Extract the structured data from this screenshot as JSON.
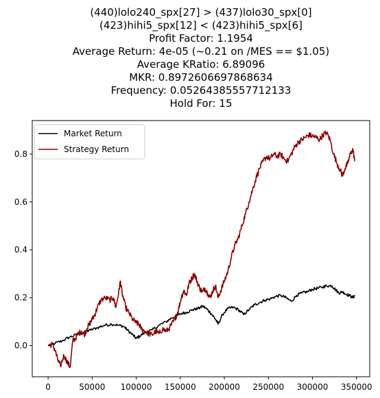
{
  "chart_data": {
    "type": "line",
    "title_lines": [
      "(440)lolo240_spx[27] > (437)lolo30_spx[0]",
      "(423)hihi5_spx[12] < (423)hihi5_spx[6]",
      "Profit Factor: 1.1954",
      "Average Return: 4e-05 (~0.21 on /MES == $1.05)",
      "Average KRatio: 6.89096",
      "MKR: 0.8972606697868634",
      "Frequency: 0.05264385557712133",
      "Hold For: 15"
    ],
    "xlabel": "",
    "ylabel": "",
    "xlim": [
      -18000,
      365000
    ],
    "ylim": [
      -0.13,
      0.94
    ],
    "xticks": [
      0,
      50000,
      100000,
      150000,
      200000,
      250000,
      300000,
      350000
    ],
    "yticks": [
      0.0,
      0.2,
      0.4,
      0.6,
      0.8
    ],
    "grid": false,
    "legend_position": "upper-left",
    "series": [
      {
        "name": "Market Return",
        "color": "#000000",
        "points": [
          [
            0,
            0.0
          ],
          [
            8000,
            0.01
          ],
          [
            16000,
            0.02
          ],
          [
            24000,
            0.035
          ],
          [
            32000,
            0.045
          ],
          [
            40000,
            0.055
          ],
          [
            48000,
            0.065
          ],
          [
            56000,
            0.075
          ],
          [
            64000,
            0.085
          ],
          [
            72000,
            0.09
          ],
          [
            80000,
            0.085
          ],
          [
            86000,
            0.08
          ],
          [
            90000,
            0.065
          ],
          [
            96000,
            0.045
          ],
          [
            100000,
            0.03
          ],
          [
            104000,
            0.04
          ],
          [
            110000,
            0.055
          ],
          [
            118000,
            0.065
          ],
          [
            126000,
            0.085
          ],
          [
            134000,
            0.1
          ],
          [
            140000,
            0.115
          ],
          [
            146000,
            0.125
          ],
          [
            152000,
            0.135
          ],
          [
            158000,
            0.14
          ],
          [
            164000,
            0.15
          ],
          [
            170000,
            0.155
          ],
          [
            176000,
            0.165
          ],
          [
            181000,
            0.15
          ],
          [
            186000,
            0.13
          ],
          [
            190000,
            0.11
          ],
          [
            193000,
            0.09
          ],
          [
            198000,
            0.13
          ],
          [
            204000,
            0.155
          ],
          [
            210000,
            0.16
          ],
          [
            216000,
            0.15
          ],
          [
            222000,
            0.13
          ],
          [
            228000,
            0.15
          ],
          [
            234000,
            0.17
          ],
          [
            240000,
            0.18
          ],
          [
            246000,
            0.19
          ],
          [
            252000,
            0.195
          ],
          [
            258000,
            0.205
          ],
          [
            264000,
            0.21
          ],
          [
            270000,
            0.2
          ],
          [
            276000,
            0.185
          ],
          [
            282000,
            0.21
          ],
          [
            288000,
            0.22
          ],
          [
            294000,
            0.225
          ],
          [
            300000,
            0.235
          ],
          [
            306000,
            0.24
          ],
          [
            312000,
            0.245
          ],
          [
            316000,
            0.25
          ],
          [
            322000,
            0.25
          ],
          [
            326000,
            0.235
          ],
          [
            330000,
            0.22
          ],
          [
            334000,
            0.225
          ],
          [
            338000,
            0.215
          ],
          [
            342000,
            0.21
          ],
          [
            346000,
            0.2
          ],
          [
            348000,
            0.21
          ]
        ]
      },
      {
        "name": "Strategy Return",
        "color": "#8b0000",
        "points": [
          [
            0,
            0.0
          ],
          [
            5000,
            0.005
          ],
          [
            8000,
            -0.02
          ],
          [
            11000,
            -0.06
          ],
          [
            14000,
            -0.085
          ],
          [
            18000,
            -0.04
          ],
          [
            22000,
            -0.07
          ],
          [
            25000,
            -0.09
          ],
          [
            28000,
            0.02
          ],
          [
            31000,
            0.03
          ],
          [
            34000,
            0.05
          ],
          [
            38000,
            0.06
          ],
          [
            41000,
            0.045
          ],
          [
            44000,
            0.07
          ],
          [
            47000,
            0.09
          ],
          [
            50000,
            0.11
          ],
          [
            53000,
            0.13
          ],
          [
            56000,
            0.16
          ],
          [
            60000,
            0.19
          ],
          [
            65000,
            0.2
          ],
          [
            70000,
            0.19
          ],
          [
            74000,
            0.2
          ],
          [
            77000,
            0.16
          ],
          [
            80000,
            0.22
          ],
          [
            82000,
            0.27
          ],
          [
            84000,
            0.22
          ],
          [
            88000,
            0.16
          ],
          [
            92000,
            0.135
          ],
          [
            96000,
            0.11
          ],
          [
            100000,
            0.095
          ],
          [
            103000,
            0.09
          ],
          [
            106000,
            0.07
          ],
          [
            110000,
            0.06
          ],
          [
            114000,
            0.05
          ],
          [
            118000,
            0.045
          ],
          [
            122000,
            0.06
          ],
          [
            126000,
            0.05
          ],
          [
            130000,
            0.07
          ],
          [
            134000,
            0.06
          ],
          [
            138000,
            0.075
          ],
          [
            142000,
            0.1
          ],
          [
            145000,
            0.12
          ],
          [
            148000,
            0.15
          ],
          [
            151000,
            0.2
          ],
          [
            154000,
            0.23
          ],
          [
            157000,
            0.21
          ],
          [
            160000,
            0.26
          ],
          [
            163000,
            0.28
          ],
          [
            166000,
            0.3
          ],
          [
            169000,
            0.27
          ],
          [
            172000,
            0.24
          ],
          [
            175000,
            0.225
          ],
          [
            178000,
            0.24
          ],
          [
            181000,
            0.22
          ],
          [
            184000,
            0.2
          ],
          [
            187000,
            0.23
          ],
          [
            190000,
            0.25
          ],
          [
            193000,
            0.2
          ],
          [
            196000,
            0.23
          ],
          [
            200000,
            0.27
          ],
          [
            204000,
            0.31
          ],
          [
            208000,
            0.37
          ],
          [
            212000,
            0.42
          ],
          [
            216000,
            0.45
          ],
          [
            220000,
            0.5
          ],
          [
            224000,
            0.55
          ],
          [
            228000,
            0.6
          ],
          [
            232000,
            0.65
          ],
          [
            236000,
            0.7
          ],
          [
            240000,
            0.74
          ],
          [
            244000,
            0.77
          ],
          [
            248000,
            0.79
          ],
          [
            252000,
            0.78
          ],
          [
            256000,
            0.8
          ],
          [
            260000,
            0.79
          ],
          [
            264000,
            0.8
          ],
          [
            268000,
            0.78
          ],
          [
            272000,
            0.77
          ],
          [
            276000,
            0.8
          ],
          [
            280000,
            0.83
          ],
          [
            284000,
            0.85
          ],
          [
            288000,
            0.86
          ],
          [
            292000,
            0.87
          ],
          [
            296000,
            0.88
          ],
          [
            300000,
            0.875
          ],
          [
            304000,
            0.87
          ],
          [
            308000,
            0.86
          ],
          [
            312000,
            0.88
          ],
          [
            316000,
            0.89
          ],
          [
            320000,
            0.86
          ],
          [
            324000,
            0.8
          ],
          [
            328000,
            0.76
          ],
          [
            332000,
            0.73
          ],
          [
            334000,
            0.71
          ],
          [
            337000,
            0.74
          ],
          [
            340000,
            0.76
          ],
          [
            343000,
            0.8
          ],
          [
            346000,
            0.82
          ],
          [
            348000,
            0.77
          ]
        ]
      }
    ]
  }
}
